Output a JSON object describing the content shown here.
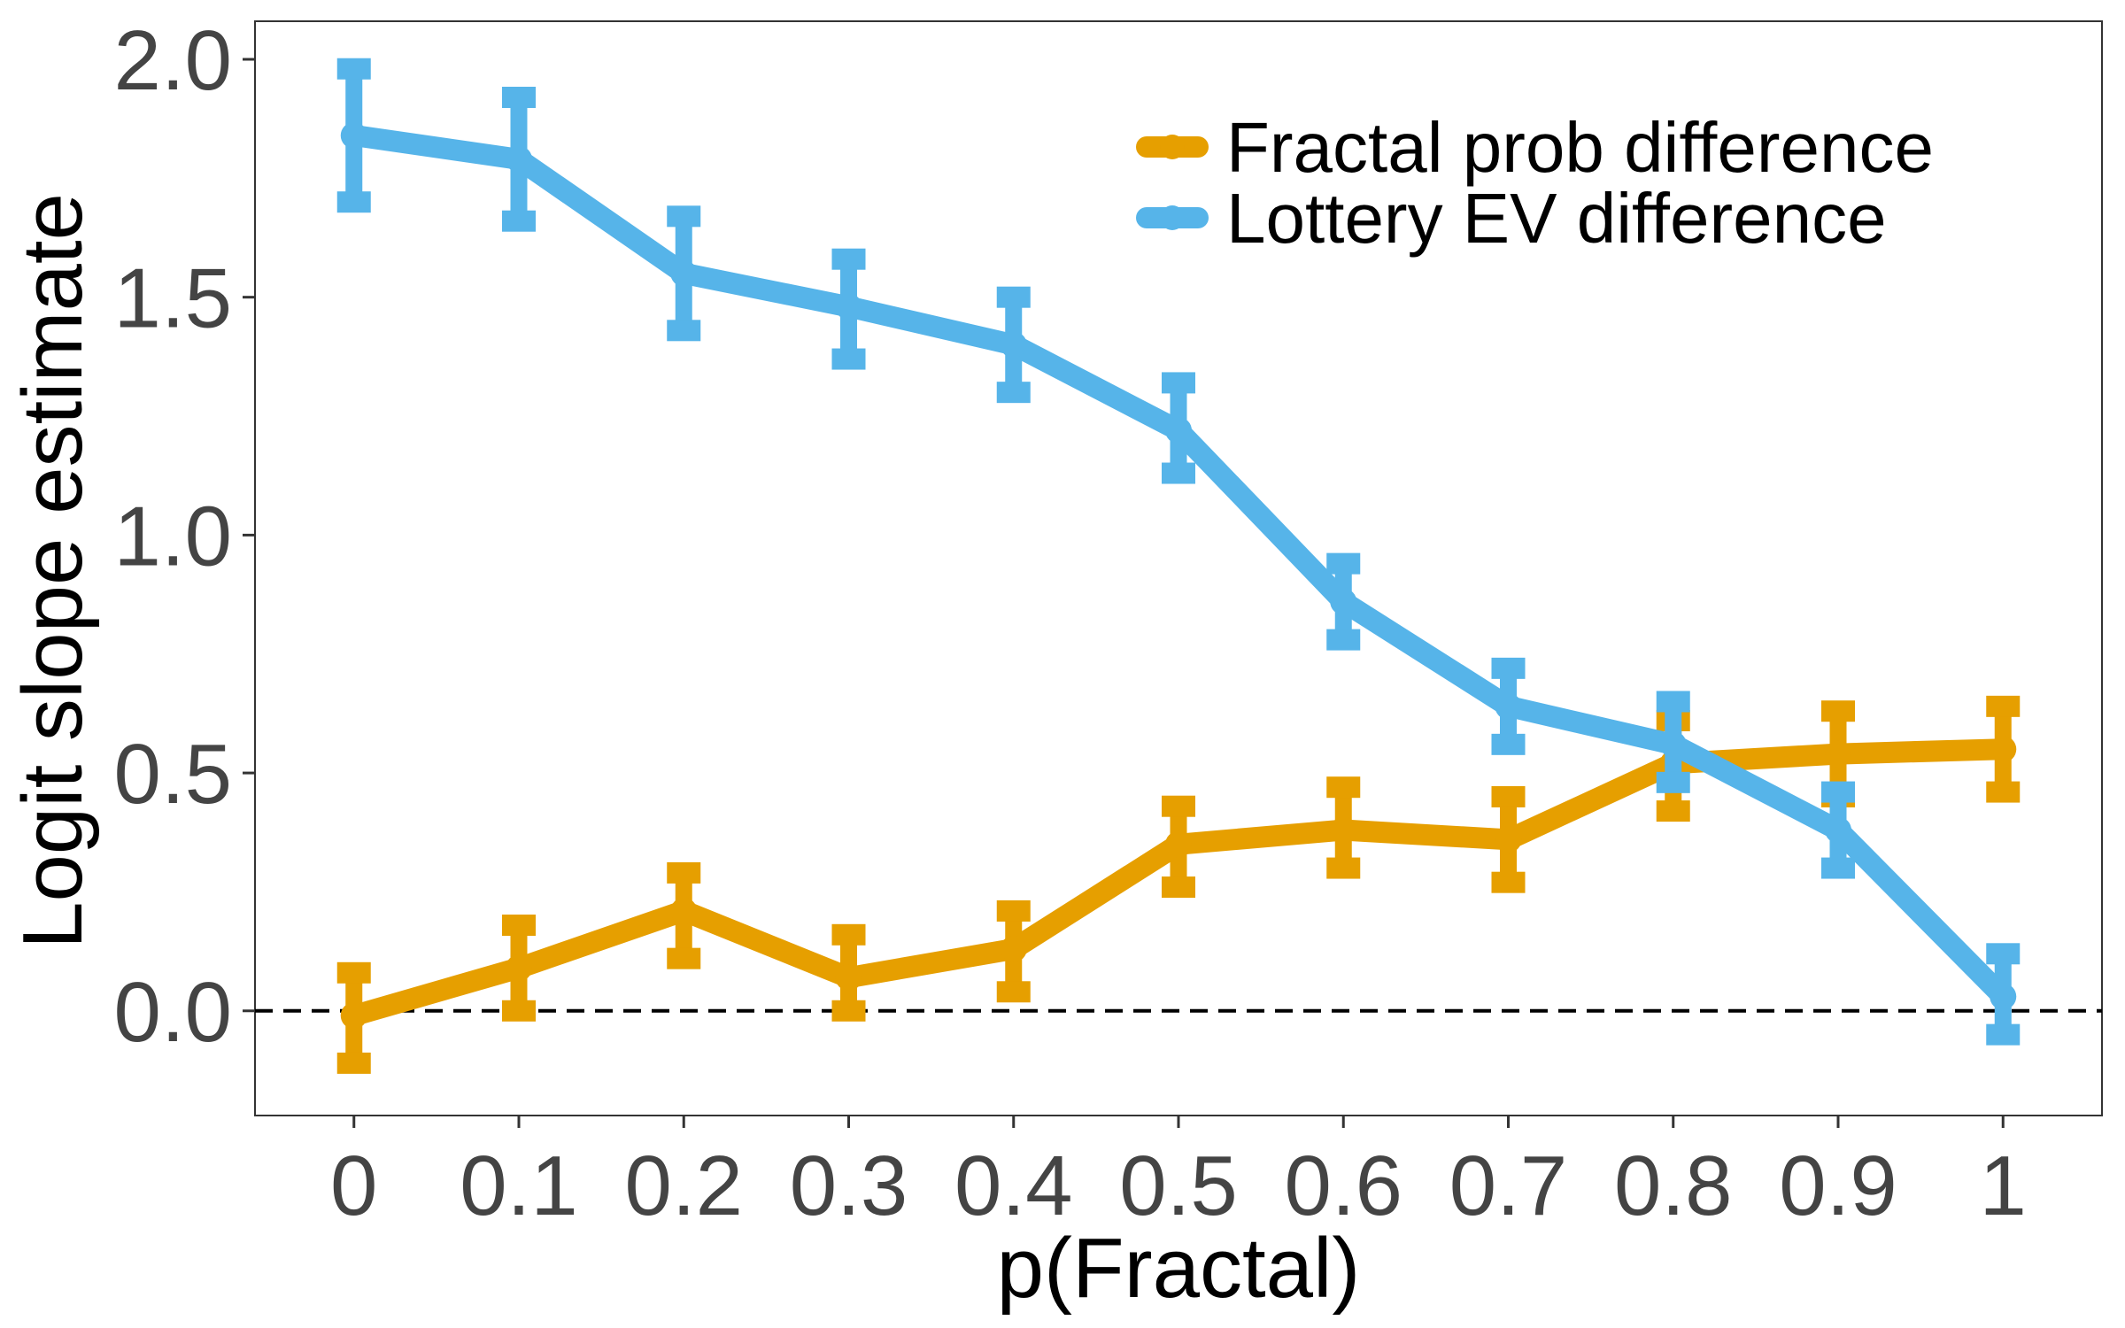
{
  "chart_data": {
    "type": "line",
    "xlabel": "p(Fractal)",
    "ylabel": "Logit slope estimate",
    "x": [
      0,
      0.1,
      0.2,
      0.3,
      0.4,
      0.5,
      0.6,
      0.7,
      0.8,
      0.9,
      1
    ],
    "x_tick_labels": [
      "0",
      "0.1",
      "0.2",
      "0.3",
      "0.4",
      "0.5",
      "0.6",
      "0.7",
      "0.8",
      "0.9",
      "1"
    ],
    "y_ticks": [
      0,
      0.5,
      1,
      1.5,
      2
    ],
    "y_tick_labels": [
      "0.0",
      "0.5",
      "1.0",
      "1.5",
      "2.0"
    ],
    "xlim": [
      -0.06,
      1.06
    ],
    "ylim": [
      -0.22,
      2.08
    ],
    "reference_line": {
      "y": 0,
      "style": "dashed",
      "color": "#000000"
    },
    "grid": false,
    "legend_position": "top-right",
    "series": [
      {
        "name": "Fractal prob difference",
        "color": "#E69F00",
        "values": [
          -0.01,
          0.09,
          0.21,
          0.07,
          0.13,
          0.35,
          0.38,
          0.36,
          0.52,
          0.54,
          0.55
        ],
        "lower": [
          -0.11,
          0.0,
          0.11,
          0.0,
          0.04,
          0.26,
          0.3,
          0.27,
          0.42,
          0.45,
          0.46
        ],
        "upper": [
          0.08,
          0.18,
          0.29,
          0.16,
          0.21,
          0.43,
          0.47,
          0.45,
          0.61,
          0.63,
          0.64
        ]
      },
      {
        "name": "Lottery EV difference",
        "color": "#56B4E9",
        "values": [
          1.84,
          1.79,
          1.55,
          1.48,
          1.4,
          1.22,
          0.86,
          0.64,
          0.56,
          0.38,
          0.03
        ],
        "lower": [
          1.7,
          1.66,
          1.43,
          1.37,
          1.3,
          1.13,
          0.78,
          0.56,
          0.48,
          0.3,
          -0.05
        ],
        "upper": [
          1.98,
          1.92,
          1.67,
          1.58,
          1.5,
          1.32,
          0.94,
          0.72,
          0.65,
          0.46,
          0.12
        ]
      }
    ]
  }
}
